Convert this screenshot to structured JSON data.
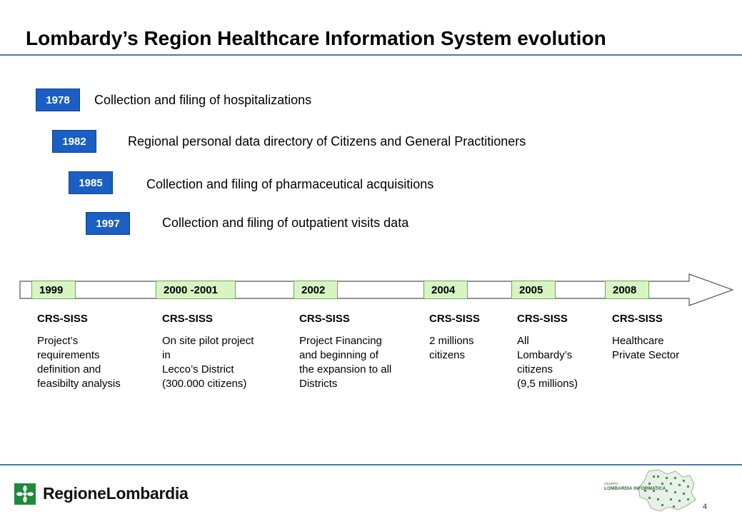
{
  "title": "Lombardy’s Region Healthcare Information System evolution",
  "milestones": [
    {
      "year": "1978",
      "text": "Collection and filing of hospitalizations"
    },
    {
      "year": "1982",
      "text": "Regional personal data directory of Citizens and General Practitioners"
    },
    {
      "year": "1985",
      "text": "Collection and filing of pharmaceutical acquisitions"
    },
    {
      "year": "1997",
      "text": "Collection and filing of outpatient visits data"
    }
  ],
  "timeline": [
    {
      "year": "1999",
      "head": "CRS-SISS",
      "desc": "Project’s\nrequirements\ndefinition and\nfeasibilty analysis"
    },
    {
      "year": "2000 -2001",
      "head": "CRS-SISS",
      "desc": "On site pilot project\nin\nLecco’s District\n(300.000 citizens)"
    },
    {
      "year": "2002",
      "head": "CRS-SISS",
      "desc": "Project Financing\nand beginning of\nthe expansion to all\nDistricts"
    },
    {
      "year": "2004",
      "head": "CRS-SISS",
      "desc": "2 millions\ncitizens"
    },
    {
      "year": "2005",
      "head": "CRS-SISS",
      "desc": "All\nLombardy’s\ncitizens\n(9,5 millions)"
    },
    {
      "year": "2008",
      "head": "CRS-SISS",
      "desc": "Healthcare\nPrivate Sector"
    }
  ],
  "footer": {
    "left_logo_text": "RegioneLombardia",
    "right_logo_small": "GRUPPO",
    "right_logo_text": "LOMBARDIA INFORMATICA",
    "page_number": "4"
  },
  "colors": {
    "year_box": "#1b5fc4",
    "timeline_box": "#d7f5c2",
    "rule": "#4a7aa8",
    "logo_green": "#1e8a3c"
  }
}
